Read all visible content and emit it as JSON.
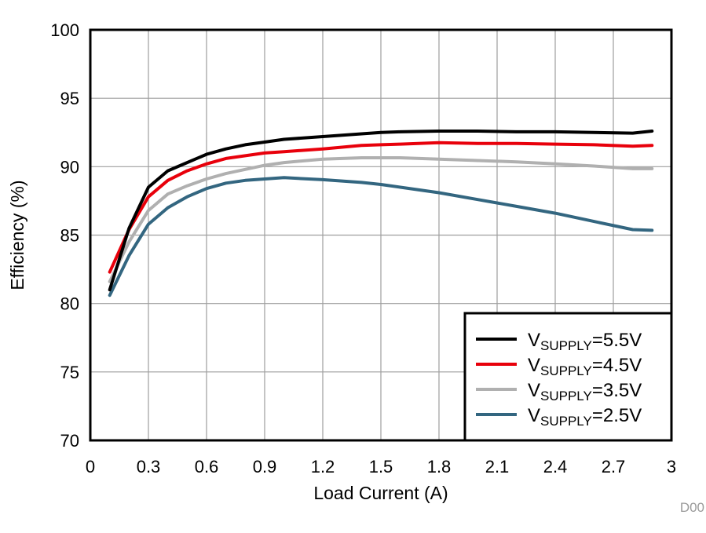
{
  "chart_data": {
    "type": "line",
    "title": "",
    "xlabel": "Load Current (A)",
    "ylabel": "Efficiency (%)",
    "xlim": [
      0,
      3
    ],
    "ylim": [
      70,
      100
    ],
    "x_ticks": [
      "0",
      "0.3",
      "0.6",
      "0.9",
      "1.2",
      "1.5",
      "1.8",
      "2.1",
      "2.4",
      "2.7",
      "3"
    ],
    "y_ticks": [
      "70",
      "75",
      "80",
      "85",
      "90",
      "95",
      "100"
    ],
    "grid": true,
    "legend_position": "bottom-right",
    "x": [
      0.1,
      0.2,
      0.3,
      0.4,
      0.5,
      0.6,
      0.7,
      0.8,
      0.9,
      1.0,
      1.2,
      1.4,
      1.5,
      1.6,
      1.8,
      2.0,
      2.2,
      2.4,
      2.6,
      2.8,
      2.9
    ],
    "series": [
      {
        "name": "V_SUPPLY=5.5V",
        "label_main": "V",
        "label_sub": "SUPPLY",
        "label_rest": "=5.5V",
        "color": "#000000",
        "values": [
          81.0,
          85.5,
          88.5,
          89.7,
          90.3,
          90.9,
          91.3,
          91.6,
          91.8,
          92.0,
          92.2,
          92.4,
          92.5,
          92.55,
          92.6,
          92.6,
          92.55,
          92.55,
          92.5,
          92.45,
          92.6
        ]
      },
      {
        "name": "V_SUPPLY=4.5V",
        "label_main": "V",
        "label_sub": "SUPPLY",
        "label_rest": "=4.5V",
        "color": "#e8000b",
        "values": [
          82.3,
          85.4,
          87.8,
          89.0,
          89.7,
          90.2,
          90.6,
          90.8,
          91.0,
          91.1,
          91.3,
          91.55,
          91.6,
          91.65,
          91.75,
          91.7,
          91.7,
          91.65,
          91.6,
          91.5,
          91.55
        ]
      },
      {
        "name": "V_SUPPLY=3.5V",
        "label_main": "V",
        "label_sub": "SUPPLY",
        "label_rest": "=3.5V",
        "color": "#b0b0b0",
        "values": [
          81.6,
          84.5,
          86.8,
          88.0,
          88.6,
          89.1,
          89.5,
          89.8,
          90.1,
          90.3,
          90.55,
          90.65,
          90.65,
          90.65,
          90.55,
          90.45,
          90.35,
          90.2,
          90.05,
          89.85,
          89.85
        ]
      },
      {
        "name": "V_SUPPLY=2.5V",
        "label_main": "V",
        "label_sub": "SUPPLY",
        "label_rest": "=2.5V",
        "color": "#336680",
        "values": [
          80.6,
          83.5,
          85.8,
          87.0,
          87.8,
          88.4,
          88.8,
          89.0,
          89.1,
          89.2,
          89.05,
          88.85,
          88.7,
          88.5,
          88.1,
          87.6,
          87.1,
          86.6,
          86.0,
          85.4,
          85.35
        ]
      }
    ]
  },
  "footer": {
    "figure_id": "D00"
  }
}
